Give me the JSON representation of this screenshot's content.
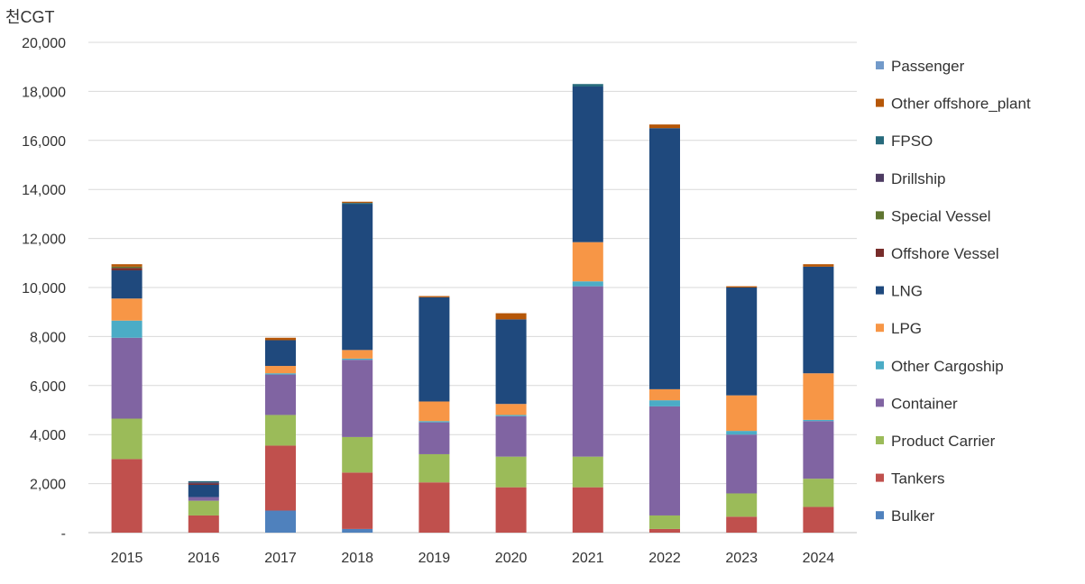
{
  "chart_data": {
    "type": "bar",
    "stacked": true,
    "title": "",
    "ylabel": "천CGT",
    "xlabel": "",
    "ylim": [
      0,
      20000
    ],
    "yticks": [
      0,
      2000,
      4000,
      6000,
      8000,
      10000,
      12000,
      14000,
      16000,
      18000,
      20000
    ],
    "ytick_labels": [
      "-",
      "2,000",
      "4,000",
      "6,000",
      "8,000",
      "10,000",
      "12,000",
      "14,000",
      "16,000",
      "18,000",
      "20,000"
    ],
    "grid": true,
    "legend_position": "right",
    "categories": [
      "2015",
      "2016",
      "2017",
      "2018",
      "2019",
      "2020",
      "2021",
      "2022",
      "2023",
      "2024"
    ],
    "series": [
      {
        "name": "Bulker",
        "color": "#4f81bd",
        "values": [
          0,
          0,
          900,
          150,
          0,
          0,
          0,
          0,
          0,
          0
        ]
      },
      {
        "name": "Tankers",
        "color": "#c0504d",
        "values": [
          3000,
          700,
          2650,
          2300,
          2050,
          1850,
          1850,
          150,
          650,
          1050
        ]
      },
      {
        "name": "Product Carrier",
        "color": "#9bbb59",
        "values": [
          1650,
          600,
          1250,
          1450,
          1150,
          1250,
          1250,
          550,
          950,
          1150
        ]
      },
      {
        "name": "Container",
        "color": "#8064a2",
        "values": [
          3300,
          150,
          1650,
          3150,
          1300,
          1650,
          6950,
          4450,
          2400,
          2350
        ]
      },
      {
        "name": "Other Cargoship",
        "color": "#4bacc6",
        "values": [
          700,
          0,
          50,
          50,
          50,
          50,
          200,
          250,
          150,
          50
        ]
      },
      {
        "name": "LPG",
        "color": "#f79646",
        "values": [
          900,
          0,
          300,
          350,
          800,
          450,
          1600,
          450,
          1450,
          1900
        ]
      },
      {
        "name": "LNG",
        "color": "#1f497d",
        "values": [
          1150,
          500,
          1050,
          5950,
          4250,
          3450,
          6350,
          10650,
          4400,
          4350
        ]
      },
      {
        "name": "Offshore Vessel",
        "color": "#772c2a",
        "values": [
          100,
          50,
          0,
          0,
          0,
          0,
          0,
          0,
          0,
          0
        ]
      },
      {
        "name": "Special Vessel",
        "color": "#5f7530",
        "values": [
          50,
          0,
          0,
          0,
          0,
          0,
          0,
          0,
          0,
          0
        ]
      },
      {
        "name": "Drillship",
        "color": "#4d3b62",
        "values": [
          0,
          50,
          0,
          0,
          0,
          0,
          0,
          0,
          0,
          0
        ]
      },
      {
        "name": "FPSO",
        "color": "#276a7c",
        "values": [
          0,
          50,
          0,
          50,
          0,
          0,
          100,
          0,
          0,
          0
        ]
      },
      {
        "name": "Other offshore_plant",
        "color": "#b65708",
        "values": [
          100,
          0,
          100,
          50,
          50,
          250,
          0,
          150,
          50,
          100
        ]
      },
      {
        "name": "Passenger",
        "color": "#729aca",
        "values": [
          0,
          0,
          0,
          0,
          0,
          0,
          0,
          0,
          0,
          0
        ]
      }
    ]
  }
}
